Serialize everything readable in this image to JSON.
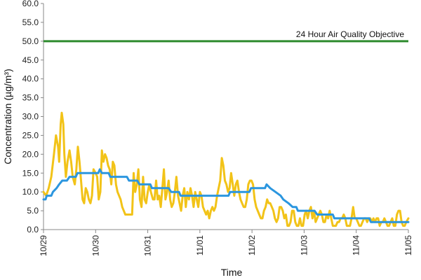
{
  "chart_data": {
    "type": "line",
    "xlabel": "Time",
    "ylabel": "Concentration (µg/m³)",
    "ylim": [
      0,
      60
    ],
    "yticks": [
      "0.0",
      "5.0",
      "10.0",
      "15.0",
      "20.0",
      "25.0",
      "30.0",
      "35.0",
      "40.0",
      "45.0",
      "50.0",
      "55.0",
      "60.0"
    ],
    "xlim": [
      0,
      7
    ],
    "xtick_labels": [
      "10/29",
      "10/30",
      "10/31",
      "11/01",
      "11/02",
      "11/03",
      "11/04",
      "11/05"
    ],
    "grid": false,
    "objective": {
      "value": 50,
      "label": "24 Hour Air Quality Objective",
      "color": "#2e8b2e"
    },
    "series": [
      {
        "color": "#f2c318",
        "points": [
          [
            0.0,
            10
          ],
          [
            0.05,
            9
          ],
          [
            0.1,
            11
          ],
          [
            0.15,
            14
          ],
          [
            0.2,
            20
          ],
          [
            0.24,
            25
          ],
          [
            0.28,
            22
          ],
          [
            0.3,
            18
          ],
          [
            0.33,
            28
          ],
          [
            0.35,
            31
          ],
          [
            0.38,
            28
          ],
          [
            0.4,
            20
          ],
          [
            0.43,
            14
          ],
          [
            0.46,
            18
          ],
          [
            0.5,
            21
          ],
          [
            0.53,
            18
          ],
          [
            0.56,
            14
          ],
          [
            0.6,
            12
          ],
          [
            0.63,
            16
          ],
          [
            0.66,
            22
          ],
          [
            0.69,
            18
          ],
          [
            0.72,
            13
          ],
          [
            0.75,
            8
          ],
          [
            0.78,
            7
          ],
          [
            0.81,
            11
          ],
          [
            0.84,
            10
          ],
          [
            0.87,
            8
          ],
          [
            0.9,
            7
          ],
          [
            0.93,
            9
          ],
          [
            0.96,
            16
          ],
          [
            1.0,
            15
          ],
          [
            1.03,
            14
          ],
          [
            1.06,
            8
          ],
          [
            1.09,
            10
          ],
          [
            1.12,
            21
          ],
          [
            1.15,
            18
          ],
          [
            1.18,
            20
          ],
          [
            1.21,
            19
          ],
          [
            1.24,
            17
          ],
          [
            1.27,
            16
          ],
          [
            1.3,
            12
          ],
          [
            1.33,
            18
          ],
          [
            1.36,
            17
          ],
          [
            1.39,
            12
          ],
          [
            1.42,
            10
          ],
          [
            1.45,
            9
          ],
          [
            1.48,
            8
          ],
          [
            1.51,
            6
          ],
          [
            1.54,
            5
          ],
          [
            1.57,
            4
          ],
          [
            1.6,
            4
          ],
          [
            1.65,
            4
          ],
          [
            1.7,
            4
          ],
          [
            1.73,
            15
          ],
          [
            1.76,
            10
          ],
          [
            1.79,
            12
          ],
          [
            1.82,
            16
          ],
          [
            1.85,
            8
          ],
          [
            1.88,
            6
          ],
          [
            1.91,
            14
          ],
          [
            1.94,
            8
          ],
          [
            1.97,
            7
          ],
          [
            2.0,
            10
          ],
          [
            2.03,
            12
          ],
          [
            2.06,
            10
          ],
          [
            2.1,
            8
          ],
          [
            2.13,
            8
          ],
          [
            2.16,
            13
          ],
          [
            2.19,
            8
          ],
          [
            2.22,
            9
          ],
          [
            2.25,
            6
          ],
          [
            2.28,
            11
          ],
          [
            2.31,
            16
          ],
          [
            2.34,
            8
          ],
          [
            2.37,
            10
          ],
          [
            2.4,
            13
          ],
          [
            2.43,
            8
          ],
          [
            2.46,
            6
          ],
          [
            2.49,
            7
          ],
          [
            2.52,
            10
          ],
          [
            2.55,
            14
          ],
          [
            2.58,
            9
          ],
          [
            2.61,
            7
          ],
          [
            2.64,
            5
          ],
          [
            2.67,
            9
          ],
          [
            2.7,
            11
          ],
          [
            2.73,
            6
          ],
          [
            2.76,
            10
          ],
          [
            2.79,
            8
          ],
          [
            2.82,
            11
          ],
          [
            2.85,
            9
          ],
          [
            2.88,
            6
          ],
          [
            2.91,
            10
          ],
          [
            2.94,
            8
          ],
          [
            2.97,
            6
          ],
          [
            3.0,
            10
          ],
          [
            3.03,
            9
          ],
          [
            3.06,
            6
          ],
          [
            3.09,
            5
          ],
          [
            3.12,
            4
          ],
          [
            3.15,
            5
          ],
          [
            3.18,
            3
          ],
          [
            3.21,
            5
          ],
          [
            3.24,
            6
          ],
          [
            3.27,
            5
          ],
          [
            3.3,
            6
          ],
          [
            3.33,
            9
          ],
          [
            3.36,
            11
          ],
          [
            3.39,
            13
          ],
          [
            3.42,
            19
          ],
          [
            3.45,
            17
          ],
          [
            3.48,
            13
          ],
          [
            3.51,
            12
          ],
          [
            3.54,
            10
          ],
          [
            3.57,
            11
          ],
          [
            3.6,
            15
          ],
          [
            3.63,
            12
          ],
          [
            3.66,
            9
          ],
          [
            3.69,
            12
          ],
          [
            3.72,
            13
          ],
          [
            3.75,
            10
          ],
          [
            3.78,
            8
          ],
          [
            3.81,
            7
          ],
          [
            3.84,
            6
          ],
          [
            3.87,
            6
          ],
          [
            3.9,
            8
          ],
          [
            3.93,
            12
          ],
          [
            3.96,
            13
          ],
          [
            3.99,
            13
          ],
          [
            4.02,
            12
          ],
          [
            4.05,
            8
          ],
          [
            4.08,
            6
          ],
          [
            4.11,
            5
          ],
          [
            4.14,
            4
          ],
          [
            4.17,
            3
          ],
          [
            4.2,
            3
          ],
          [
            4.23,
            5
          ],
          [
            4.26,
            6
          ],
          [
            4.29,
            8
          ],
          [
            4.32,
            7
          ],
          [
            4.35,
            7
          ],
          [
            4.38,
            6
          ],
          [
            4.41,
            5
          ],
          [
            4.44,
            3
          ],
          [
            4.47,
            2
          ],
          [
            4.5,
            3
          ],
          [
            4.53,
            6
          ],
          [
            4.56,
            6
          ],
          [
            4.59,
            5
          ],
          [
            4.62,
            3
          ],
          [
            4.65,
            4
          ],
          [
            4.68,
            1
          ],
          [
            4.71,
            1
          ],
          [
            4.74,
            2
          ],
          [
            4.77,
            5
          ],
          [
            4.8,
            5
          ],
          [
            4.83,
            2
          ],
          [
            4.86,
            1
          ],
          [
            4.89,
            1
          ],
          [
            4.92,
            3
          ],
          [
            4.95,
            1
          ],
          [
            4.98,
            1
          ],
          [
            5.01,
            4
          ],
          [
            5.04,
            5
          ],
          [
            5.07,
            3
          ],
          [
            5.1,
            5
          ],
          [
            5.13,
            6
          ],
          [
            5.16,
            3
          ],
          [
            5.19,
            5
          ],
          [
            5.22,
            2
          ],
          [
            5.25,
            3
          ],
          [
            5.28,
            4
          ],
          [
            5.31,
            5
          ],
          [
            5.34,
            4
          ],
          [
            5.37,
            2
          ],
          [
            5.4,
            2
          ],
          [
            5.43,
            4
          ],
          [
            5.46,
            3
          ],
          [
            5.49,
            5
          ],
          [
            5.52,
            3
          ],
          [
            5.55,
            1
          ],
          [
            5.58,
            1
          ],
          [
            5.61,
            1
          ],
          [
            5.64,
            2
          ],
          [
            5.67,
            2
          ],
          [
            5.7,
            3
          ],
          [
            5.73,
            3
          ],
          [
            5.76,
            4
          ],
          [
            5.79,
            3
          ],
          [
            5.82,
            1
          ],
          [
            5.85,
            1
          ],
          [
            5.88,
            1
          ],
          [
            5.91,
            3
          ],
          [
            5.94,
            6
          ],
          [
            5.97,
            3
          ],
          [
            6.0,
            3
          ],
          [
            6.03,
            2
          ],
          [
            6.06,
            1
          ],
          [
            6.09,
            1
          ],
          [
            6.12,
            2
          ],
          [
            6.15,
            3
          ],
          [
            6.18,
            3
          ],
          [
            6.21,
            2
          ],
          [
            6.24,
            3
          ],
          [
            6.27,
            3
          ],
          [
            6.3,
            2
          ],
          [
            6.33,
            3
          ],
          [
            6.36,
            2
          ],
          [
            6.39,
            3
          ],
          [
            6.42,
            3
          ],
          [
            6.45,
            1
          ],
          [
            6.48,
            2
          ],
          [
            6.51,
            2
          ],
          [
            6.54,
            3
          ],
          [
            6.57,
            2
          ],
          [
            6.6,
            1
          ],
          [
            6.63,
            1
          ],
          [
            6.66,
            2
          ],
          [
            6.69,
            3
          ],
          [
            6.72,
            1
          ],
          [
            6.75,
            1
          ],
          [
            6.78,
            4
          ],
          [
            6.81,
            5
          ],
          [
            6.84,
            5
          ],
          [
            6.87,
            2
          ],
          [
            6.9,
            1
          ],
          [
            6.93,
            1
          ],
          [
            6.96,
            2
          ],
          [
            7.0,
            3
          ]
        ]
      },
      {
        "color": "#2b96df",
        "points": [
          [
            0.0,
            8
          ],
          [
            0.04,
            8
          ],
          [
            0.06,
            9
          ],
          [
            0.15,
            9
          ],
          [
            0.18,
            10
          ],
          [
            0.25,
            11
          ],
          [
            0.3,
            12
          ],
          [
            0.36,
            13
          ],
          [
            0.45,
            13
          ],
          [
            0.5,
            14
          ],
          [
            0.62,
            14
          ],
          [
            0.65,
            15
          ],
          [
            1.05,
            15
          ],
          [
            1.08,
            16
          ],
          [
            1.12,
            15
          ],
          [
            1.25,
            15
          ],
          [
            1.28,
            14
          ],
          [
            1.6,
            14
          ],
          [
            1.64,
            13
          ],
          [
            1.8,
            13
          ],
          [
            1.84,
            12
          ],
          [
            2.05,
            12
          ],
          [
            2.08,
            11
          ],
          [
            2.4,
            11
          ],
          [
            2.45,
            10
          ],
          [
            2.6,
            10
          ],
          [
            2.63,
            9
          ],
          [
            3.0,
            9
          ],
          [
            3.05,
            9
          ],
          [
            3.5,
            9
          ],
          [
            3.55,
            9
          ],
          [
            3.58,
            10
          ],
          [
            3.95,
            10
          ],
          [
            3.98,
            11
          ],
          [
            4.25,
            11
          ],
          [
            4.28,
            12
          ],
          [
            4.35,
            11
          ],
          [
            4.45,
            10
          ],
          [
            4.55,
            9
          ],
          [
            4.6,
            8
          ],
          [
            4.7,
            7
          ],
          [
            4.78,
            6
          ],
          [
            4.85,
            6
          ],
          [
            4.88,
            5
          ],
          [
            5.2,
            5
          ],
          [
            5.25,
            4
          ],
          [
            5.55,
            4
          ],
          [
            5.58,
            3
          ],
          [
            6.25,
            3
          ],
          [
            6.28,
            2
          ],
          [
            7.0,
            2
          ]
        ]
      }
    ]
  }
}
